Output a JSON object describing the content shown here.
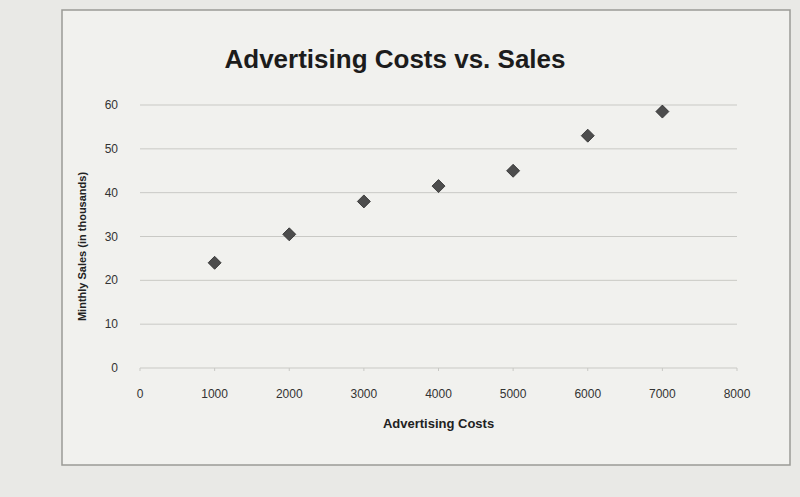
{
  "chart_data": {
    "type": "scatter",
    "title": "Advertising Costs vs. Sales",
    "xlabel": "Advertising Costs",
    "ylabel": "Minthly Sales (in thousands)",
    "x": [
      1000,
      2000,
      3000,
      4000,
      5000,
      6000,
      7000
    ],
    "values": [
      24,
      30.5,
      38,
      41.5,
      45,
      53,
      58.5
    ],
    "color": "#4d4d4d",
    "marker": "diamond",
    "xlim": [
      0,
      8000
    ],
    "xticks": [
      0,
      1000,
      2000,
      3000,
      4000,
      5000,
      6000,
      7000,
      8000
    ],
    "ylim": [
      0,
      60
    ],
    "yticks": [
      0,
      10,
      20,
      30,
      40,
      50,
      60
    ],
    "grid": true
  }
}
